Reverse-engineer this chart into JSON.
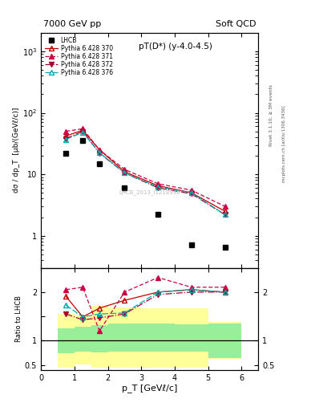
{
  "title_left": "7000 GeV pp",
  "title_right": "Soft QCD",
  "right_label1": "Rivet 3.1.10, ≥ 3M events",
  "right_label2": "mcplots.cern.ch [arXiv:1306.3436]",
  "watermark": "LHCB_2013_I1218996",
  "main_title": "pT(D*) (y-4.0-4.5)",
  "ylabel": "dσ / dp_T  [µb/(GeVℓ/c)]",
  "xlabel": "p_T [GeVℓ/c]",
  "ylabel_ratio": "Ratio to LHCB",
  "lhcb_x": [
    0.75,
    1.25,
    1.75,
    2.5,
    3.5,
    4.5,
    5.5
  ],
  "lhcb_y": [
    22.0,
    35.0,
    15.0,
    6.0,
    2.2,
    0.7,
    0.65
  ],
  "py370_x": [
    0.75,
    1.25,
    1.75,
    2.5,
    3.5,
    4.5,
    5.5
  ],
  "py370_y": [
    42.0,
    52.0,
    25.0,
    11.0,
    6.5,
    5.0,
    2.5
  ],
  "py371_x": [
    0.75,
    1.25,
    1.75,
    2.5,
    3.5,
    4.5,
    5.5
  ],
  "py371_y": [
    50.0,
    55.0,
    25.0,
    12.0,
    7.0,
    5.5,
    3.0
  ],
  "py372_x": [
    0.75,
    1.25,
    1.75,
    2.5,
    3.5,
    4.5,
    5.5
  ],
  "py372_y": [
    38.0,
    50.0,
    22.0,
    10.5,
    6.0,
    4.8,
    2.2
  ],
  "py376_x": [
    0.75,
    1.25,
    1.75,
    2.5,
    3.5,
    4.5,
    5.5
  ],
  "py376_y": [
    37.0,
    48.0,
    22.5,
    10.5,
    6.2,
    5.0,
    2.2
  ],
  "ratio370_x": [
    0.75,
    1.25,
    1.75,
    2.5,
    3.5,
    4.5,
    5.5
  ],
  "ratio370_y": [
    1.91,
    1.49,
    1.67,
    1.83,
    2.0,
    2.05,
    2.0
  ],
  "ratio371_x": [
    0.75,
    1.25,
    1.75,
    2.5,
    3.5,
    4.5,
    5.5
  ],
  "ratio371_y": [
    2.05,
    2.1,
    1.2,
    2.0,
    2.3,
    2.1,
    2.1
  ],
  "ratio372_x": [
    0.75,
    1.25,
    1.75,
    2.5,
    3.5,
    4.5,
    5.5
  ],
  "ratio372_y": [
    1.55,
    1.43,
    1.47,
    1.55,
    1.95,
    2.0,
    2.0
  ],
  "ratio376_x": [
    0.75,
    1.25,
    1.75,
    2.5,
    3.5,
    4.5,
    5.5
  ],
  "ratio376_y": [
    1.73,
    1.49,
    1.55,
    1.57,
    2.0,
    2.05,
    2.0
  ],
  "color370": "#c00000",
  "color371": "#cc0044",
  "color372": "#aa0033",
  "color376": "#00aaaa",
  "band_edges": [
    0.5,
    1.0,
    1.5,
    2.0,
    3.0,
    4.0,
    5.0,
    6.0
  ],
  "green_lo": [
    0.75,
    0.77,
    0.76,
    0.77,
    0.78,
    0.78,
    0.65,
    0.65
  ],
  "green_hi": [
    1.25,
    1.28,
    1.32,
    1.35,
    1.35,
    1.33,
    1.35,
    1.35
  ],
  "yellow_lo": [
    0.45,
    0.52,
    0.45,
    0.45,
    0.45,
    0.45,
    0.62,
    0.62
  ],
  "yellow_hi": [
    1.55,
    1.52,
    1.72,
    1.68,
    1.67,
    1.67,
    1.38,
    1.38
  ]
}
